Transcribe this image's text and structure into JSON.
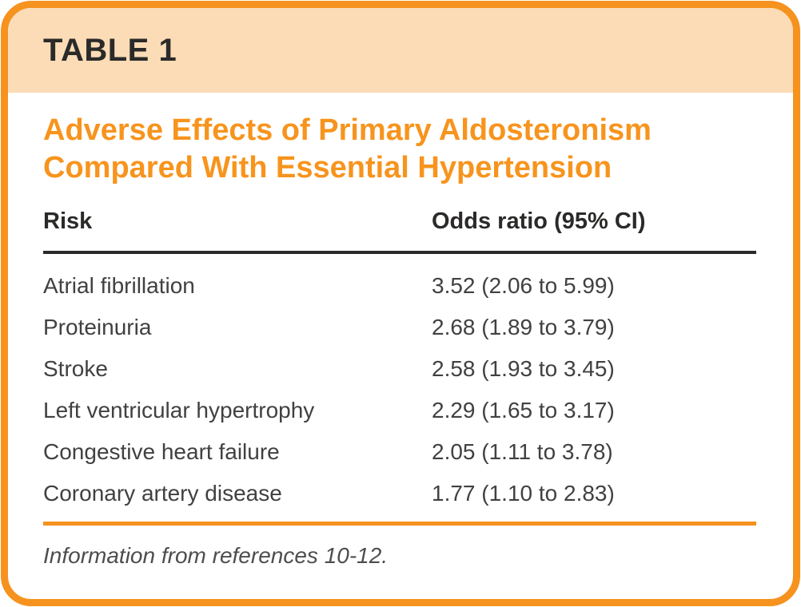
{
  "header": {
    "tag": "TABLE 1",
    "title": "Adverse Effects of Primary Aldosteronism Compared With Essential Hypertension"
  },
  "table": {
    "columns": [
      "Risk",
      "Odds ratio (95% CI)"
    ],
    "rows": [
      [
        "Atrial fibrillation",
        "3.52 (2.06 to 5.99)"
      ],
      [
        "Proteinuria",
        "2.68 (1.89 to 3.79)"
      ],
      [
        "Stroke",
        "2.58 (1.93 to 3.45)"
      ],
      [
        "Left ventricular hypertrophy",
        "2.29 (1.65 to 3.17)"
      ],
      [
        "Congestive heart failure",
        "2.05 (1.11 to 3.78)"
      ],
      [
        "Coronary artery disease",
        "1.77 (1.10 to 2.83)"
      ]
    ],
    "footnote": "Information from references 10-12."
  },
  "colors": {
    "accent_orange": "#F6921E",
    "title_orange": "#F7941D",
    "band_peach": "#FBDCB6",
    "heading_dark": "#2B2A29",
    "body_text": "#414042",
    "footnote_gray": "#4D4D4F"
  },
  "chart_data": {
    "type": "table",
    "title": "Adverse Effects of Primary Aldosteronism Compared With Essential Hypertension",
    "table_label": "TABLE 1",
    "columns": [
      "Risk",
      "Odds ratio (95% CI)"
    ],
    "rows": [
      {
        "risk": "Atrial fibrillation",
        "odds_ratio": 3.52,
        "ci_low": 2.06,
        "ci_high": 5.99,
        "display": "3.52 (2.06 to 5.99)"
      },
      {
        "risk": "Proteinuria",
        "odds_ratio": 2.68,
        "ci_low": 1.89,
        "ci_high": 3.79,
        "display": "2.68 (1.89 to 3.79)"
      },
      {
        "risk": "Stroke",
        "odds_ratio": 2.58,
        "ci_low": 1.93,
        "ci_high": 3.45,
        "display": "2.58 (1.93 to 3.45)"
      },
      {
        "risk": "Left ventricular hypertrophy",
        "odds_ratio": 2.29,
        "ci_low": 1.65,
        "ci_high": 3.17,
        "display": "2.29 (1.65 to 3.17)"
      },
      {
        "risk": "Congestive heart failure",
        "odds_ratio": 2.05,
        "ci_low": 1.11,
        "ci_high": 3.78,
        "display": "2.05 (1.11 to 3.78)"
      },
      {
        "risk": "Coronary artery disease",
        "odds_ratio": 1.77,
        "ci_low": 1.1,
        "ci_high": 2.83,
        "display": "1.77 (1.10 to 2.83)"
      }
    ],
    "footnote": "Information from references 10-12."
  }
}
